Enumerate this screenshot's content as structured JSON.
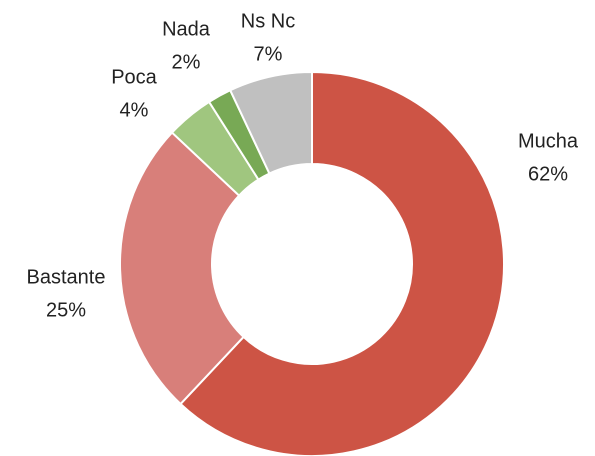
{
  "chart_data": {
    "type": "donut",
    "categories": [
      "Mucha",
      "Bastante",
      "Poca",
      "Nada",
      "Ns Nc"
    ],
    "values": [
      62,
      25,
      4,
      2,
      7
    ],
    "value_labels": [
      "62%",
      "25%",
      "4%",
      "2%",
      "7%"
    ],
    "colors": [
      "#cd5445",
      "#d87f7a",
      "#a0c67f",
      "#78a955",
      "#c0c0c0"
    ]
  }
}
